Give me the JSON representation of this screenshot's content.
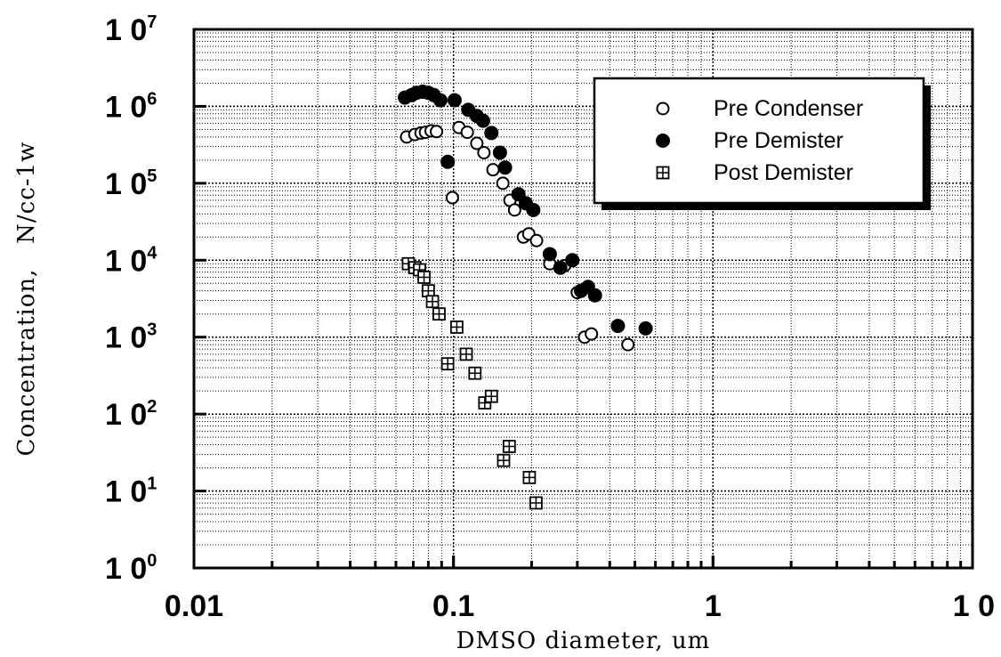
{
  "chart_data": {
    "type": "scatter",
    "xlabel": "DMSO diameter, um",
    "ylabel": "Concentration,   N/cc-1w",
    "xscale": "log",
    "yscale": "log",
    "xlim": [
      0.01,
      10
    ],
    "ylim": [
      1,
      10000000
    ],
    "grid": "on (major and minor, dotted)",
    "legend_position": "top-right",
    "x_tick_labels": [
      "0.01",
      "0.1",
      "1",
      "1 0"
    ],
    "y_tick_labels": [
      {
        "base": "1 0",
        "exp": "0"
      },
      {
        "base": "1 0",
        "exp": "1"
      },
      {
        "base": "1 0",
        "exp": "2"
      },
      {
        "base": "1 0",
        "exp": "3"
      },
      {
        "base": "1 0",
        "exp": "4"
      },
      {
        "base": "1 0",
        "exp": "5"
      },
      {
        "base": "1 0",
        "exp": "6"
      },
      {
        "base": "1 0",
        "exp": "7"
      }
    ],
    "series": [
      {
        "name": "Pre Condenser",
        "marker": "open-circle",
        "color": "#000000",
        "points": [
          [
            0.066,
            400000
          ],
          [
            0.071,
            430000
          ],
          [
            0.075,
            450000
          ],
          [
            0.078,
            460000
          ],
          [
            0.082,
            480000
          ],
          [
            0.086,
            470000
          ],
          [
            0.099,
            65000
          ],
          [
            0.105,
            530000
          ],
          [
            0.113,
            460000
          ],
          [
            0.123,
            330000
          ],
          [
            0.131,
            250000
          ],
          [
            0.142,
            150000
          ],
          [
            0.155,
            100000
          ],
          [
            0.165,
            60000
          ],
          [
            0.172,
            45000
          ],
          [
            0.186,
            20000
          ],
          [
            0.195,
            22000
          ],
          [
            0.209,
            18000
          ],
          [
            0.235,
            9000
          ],
          [
            0.268,
            8500
          ],
          [
            0.3,
            3800
          ],
          [
            0.32,
            1000
          ],
          [
            0.34,
            1100
          ],
          [
            0.47,
            800
          ]
        ]
      },
      {
        "name": "Pre Demister",
        "marker": "filled-circle",
        "color": "#000000",
        "points": [
          [
            0.065,
            1300000
          ],
          [
            0.069,
            1400000
          ],
          [
            0.072,
            1500000
          ],
          [
            0.076,
            1550000
          ],
          [
            0.08,
            1500000
          ],
          [
            0.084,
            1400000
          ],
          [
            0.089,
            1200000
          ],
          [
            0.095,
            190000
          ],
          [
            0.101,
            1200000
          ],
          [
            0.114,
            900000
          ],
          [
            0.123,
            750000
          ],
          [
            0.13,
            650000
          ],
          [
            0.14,
            450000
          ],
          [
            0.151,
            250000
          ],
          [
            0.158,
            160000
          ],
          [
            0.178,
            72000
          ],
          [
            0.19,
            55000
          ],
          [
            0.203,
            45000
          ],
          [
            0.235,
            12000
          ],
          [
            0.258,
            8000
          ],
          [
            0.287,
            10000
          ],
          [
            0.31,
            4000
          ],
          [
            0.33,
            4500
          ],
          [
            0.351,
            3500
          ],
          [
            0.43,
            1400
          ],
          [
            0.55,
            1300
          ]
        ]
      },
      {
        "name": "Post Demister",
        "marker": "boxed-cross",
        "color": "#000000",
        "points": [
          [
            0.067,
            9000
          ],
          [
            0.071,
            8000
          ],
          [
            0.074,
            7500
          ],
          [
            0.077,
            6000
          ],
          [
            0.08,
            4000
          ],
          [
            0.083,
            2900
          ],
          [
            0.088,
            2000
          ],
          [
            0.095,
            450
          ],
          [
            0.103,
            1350
          ],
          [
            0.112,
            600
          ],
          [
            0.121,
            340
          ],
          [
            0.132,
            140
          ],
          [
            0.14,
            170
          ],
          [
            0.156,
            25
          ],
          [
            0.164,
            38
          ],
          [
            0.196,
            15
          ],
          [
            0.208,
            7
          ]
        ]
      }
    ]
  }
}
